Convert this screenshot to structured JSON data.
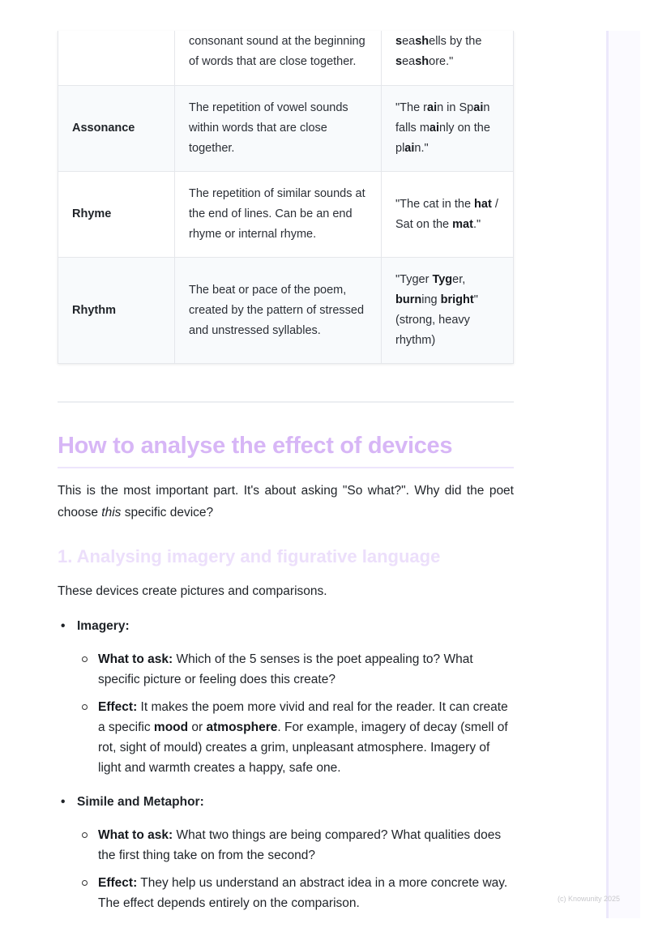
{
  "table": {
    "rows": [
      {
        "term": "",
        "definition": "consonant sound at the beginning of words that are close together.",
        "example": [
          {
            "t": "s",
            "b": true
          },
          {
            "t": "ea"
          },
          {
            "t": "sh",
            "b": true
          },
          {
            "t": "ells by the "
          },
          {
            "t": "s",
            "b": true
          },
          {
            "t": "ea"
          },
          {
            "t": "sh",
            "b": true
          },
          {
            "t": "ore.\""
          }
        ]
      },
      {
        "term": "Assonance",
        "definition": "The repetition of vowel sounds within words that are close together.",
        "example": [
          {
            "t": "\"The r"
          },
          {
            "t": "ai",
            "b": true
          },
          {
            "t": "n in Sp"
          },
          {
            "t": "ai",
            "b": true
          },
          {
            "t": "n falls m"
          },
          {
            "t": "ai",
            "b": true
          },
          {
            "t": "nly on the pl"
          },
          {
            "t": "ai",
            "b": true
          },
          {
            "t": "n.\""
          }
        ]
      },
      {
        "term": "Rhyme",
        "definition": "The repetition of similar sounds at the end of lines. Can be an end rhyme or internal rhyme.",
        "example": [
          {
            "t": "\"The cat in the "
          },
          {
            "t": "hat",
            "b": true
          },
          {
            "t": " / Sat on the "
          },
          {
            "t": "mat",
            "b": true
          },
          {
            "t": ".\""
          }
        ]
      },
      {
        "term": "Rhythm",
        "definition": "The beat or pace of the poem, created by the pattern of stressed and unstressed syllables.",
        "example": [
          {
            "t": "\"Tyger "
          },
          {
            "t": "Tyg",
            "b": true
          },
          {
            "t": "er, "
          },
          {
            "t": "burn",
            "b": true
          },
          {
            "t": "ing "
          },
          {
            "t": "bright",
            "b": true
          },
          {
            "t": "\" (strong, heavy rhythm)"
          }
        ]
      }
    ]
  },
  "section": {
    "title": "How to analyse the effect of devices",
    "intro": [
      {
        "t": "This is the most important part. It's about asking \"So what?\". Why did the poet choose "
      },
      {
        "t": "this",
        "i": true
      },
      {
        "t": " specific device?"
      }
    ],
    "subtitle": "1. Analysing imagery and figurative language",
    "subintro": [
      {
        "t": "These devices create pictures and comparisons."
      }
    ],
    "items": [
      {
        "label": "Imagery:",
        "sub": [
          [
            {
              "t": "What to ask:",
              "b": true
            },
            {
              "t": " Which of the 5 senses is the poet appealing to? What specific picture or feeling does this create?"
            }
          ],
          [
            {
              "t": "Effect:",
              "b": true
            },
            {
              "t": " It makes the poem more vivid and real for the reader. It can create a specific "
            },
            {
              "t": "mood",
              "b": true
            },
            {
              "t": " or "
            },
            {
              "t": "atmosphere",
              "b": true
            },
            {
              "t": ". For example, imagery of decay (smell of rot, sight of mould) creates a grim, unpleasant atmosphere. Imagery of light and warmth creates a happy, safe one."
            }
          ]
        ]
      },
      {
        "label": "Simile and Metaphor:",
        "sub": [
          [
            {
              "t": "What to ask:",
              "b": true
            },
            {
              "t": " What two things are being compared? What qualities does the first thing take on from the second?"
            }
          ],
          [
            {
              "t": "Effect:",
              "b": true
            },
            {
              "t": " They help us understand an abstract idea in a more concrete way. The effect depends entirely on the comparison."
            }
          ]
        ]
      }
    ]
  },
  "footer": "(c) Knowunity 2025",
  "colors": {
    "heading": "#d7b6f6",
    "subheading": "#ecdffb",
    "sidebar": "#fbfaff"
  }
}
